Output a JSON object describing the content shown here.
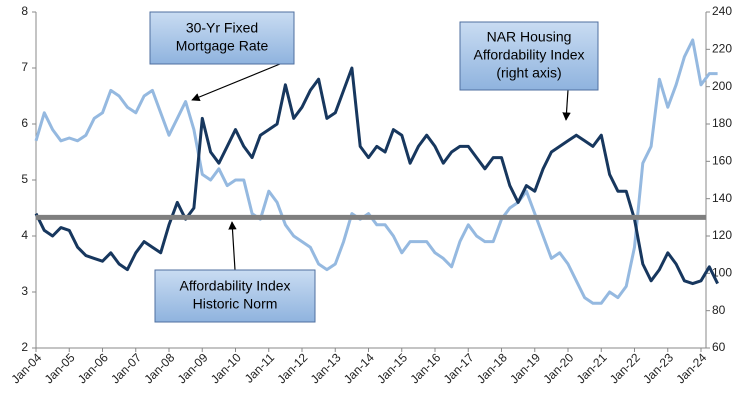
{
  "chart_data": {
    "type": "line",
    "categories": [
      "Jan-04",
      null,
      null,
      null,
      "Jan-05",
      null,
      null,
      null,
      "Jan-06",
      null,
      null,
      null,
      "Jan-07",
      null,
      null,
      null,
      "Jan-08",
      null,
      null,
      null,
      "Jan-09",
      null,
      null,
      null,
      "Jan-10",
      null,
      null,
      null,
      "Jan-11",
      null,
      null,
      null,
      "Jan-12",
      null,
      null,
      null,
      "Jan-13",
      null,
      null,
      null,
      "Jan-14",
      null,
      null,
      null,
      "Jan-15",
      null,
      null,
      null,
      "Jan-16",
      null,
      null,
      null,
      "Jan-17",
      null,
      null,
      null,
      "Jan-18",
      null,
      null,
      null,
      "Jan-19",
      null,
      null,
      null,
      "Jan-20",
      null,
      null,
      null,
      "Jan-21",
      null,
      null,
      null,
      "Jan-22",
      null,
      null,
      null,
      "Jan-23",
      null,
      null,
      null,
      "Jan-24",
      null,
      null
    ],
    "series": [
      {
        "name": "30-Yr Fixed Mortgage Rate",
        "color": "#95b9e0",
        "axis": "y",
        "values": [
          5.7,
          6.2,
          5.9,
          5.7,
          5.75,
          5.7,
          5.8,
          6.1,
          6.2,
          6.6,
          6.5,
          6.3,
          6.2,
          6.5,
          6.6,
          6.2,
          5.8,
          6.1,
          6.4,
          5.9,
          5.1,
          5.0,
          5.2,
          4.9,
          5.0,
          5.0,
          4.4,
          4.3,
          4.8,
          4.6,
          4.2,
          4.0,
          3.9,
          3.8,
          3.5,
          3.4,
          3.5,
          3.9,
          4.4,
          4.3,
          4.4,
          4.2,
          4.2,
          4.0,
          3.7,
          3.9,
          3.9,
          3.9,
          3.7,
          3.6,
          3.45,
          3.9,
          4.2,
          4.0,
          3.9,
          3.9,
          4.3,
          4.5,
          4.6,
          4.8,
          4.4,
          4.0,
          3.6,
          3.7,
          3.5,
          3.2,
          2.9,
          2.8,
          2.8,
          3.0,
          2.9,
          3.1,
          3.8,
          5.3,
          5.6,
          6.8,
          6.3,
          6.7,
          7.2,
          7.5,
          6.7,
          6.9,
          6.9
        ]
      },
      {
        "name": "NAR Housing Affordability Index (right axis)",
        "color": "#17375e",
        "axis": "y2",
        "values": [
          132,
          123,
          120,
          124.5,
          123,
          114,
          109.5,
          108,
          106.5,
          111,
          105,
          102,
          111,
          117,
          114,
          111,
          126,
          138,
          129,
          135,
          183,
          165,
          159,
          168,
          177,
          168,
          162,
          174,
          177,
          180,
          201,
          183,
          189,
          198,
          204,
          183,
          186,
          198,
          210,
          168,
          162,
          168,
          165,
          177,
          174,
          159,
          168,
          174,
          168,
          159,
          165,
          168,
          168,
          162,
          156,
          162,
          162,
          147,
          138,
          147,
          144,
          156,
          165,
          168,
          171,
          174,
          171,
          168,
          174,
          153,
          144,
          144,
          129,
          105,
          96,
          102,
          111,
          105,
          96,
          94.5,
          96,
          103.5,
          94.5
        ]
      }
    ],
    "reference_line": {
      "value": 130,
      "axis": "y2",
      "color": "#7f7f7f"
    },
    "annotations": [
      {
        "lines": [
          "30-Yr Fixed",
          "Mortgage Rate"
        ]
      },
      {
        "lines": [
          "NAR Housing",
          "Affordability Index",
          "(right axis)"
        ]
      },
      {
        "lines": [
          "Affordability Index",
          "Historic Norm"
        ]
      }
    ],
    "ylim": [
      2,
      8
    ],
    "yticks": [
      2,
      3,
      4,
      5,
      6,
      7,
      8
    ],
    "y2lim": [
      60,
      240
    ],
    "y2ticks": [
      60,
      80,
      100,
      120,
      140,
      160,
      180,
      200,
      220,
      240
    ]
  }
}
